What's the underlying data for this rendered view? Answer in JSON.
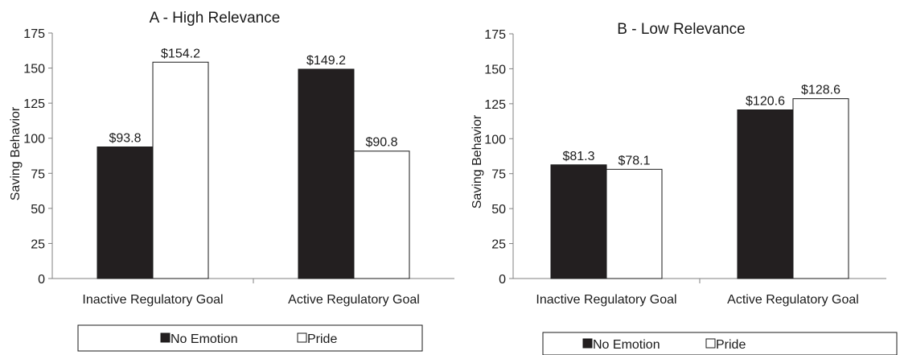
{
  "chart_data": [
    {
      "type": "bar",
      "title": "A - High Relevance",
      "ylabel": "Saving Behavior",
      "xlabel": "",
      "ylim": [
        0,
        175
      ],
      "yticks": [
        0,
        25,
        50,
        75,
        100,
        125,
        150,
        175
      ],
      "categories": [
        "Inactive Regulatory Goal",
        "Active Regulatory Goal"
      ],
      "series": [
        {
          "name": "No Emotion",
          "values": [
            93.8,
            149.2
          ],
          "labels": [
            "$93.8",
            "$149.2"
          ],
          "color": "#231f20"
        },
        {
          "name": "Pride",
          "values": [
            154.2,
            90.8
          ],
          "labels": [
            "$154.2",
            "$90.8"
          ],
          "color": "#ffffff"
        }
      ],
      "legend": {
        "placement": "bottom",
        "items": [
          "No Emotion",
          "Pride"
        ],
        "markers": [
          "■",
          "□"
        ]
      },
      "grid": false
    },
    {
      "type": "bar",
      "title": "B - Low Relevance",
      "ylabel": "Saving Behavior",
      "xlabel": "",
      "ylim": [
        0,
        175
      ],
      "yticks": [
        0,
        25,
        50,
        75,
        100,
        125,
        150,
        175
      ],
      "categories": [
        "Inactive Regulatory Goal",
        "Active Regulatory Goal"
      ],
      "series": [
        {
          "name": "No Emotion",
          "values": [
            81.3,
            120.6
          ],
          "labels": [
            "$81.3",
            "$120.6"
          ],
          "color": "#231f20"
        },
        {
          "name": "Pride",
          "values": [
            78.1,
            128.6
          ],
          "labels": [
            "$78.1",
            "$128.6"
          ],
          "color": "#ffffff"
        }
      ],
      "legend": {
        "placement": "bottom",
        "items": [
          "No Emotion",
          "Pride"
        ],
        "markers": [
          "■",
          "□"
        ]
      },
      "grid": false
    }
  ]
}
